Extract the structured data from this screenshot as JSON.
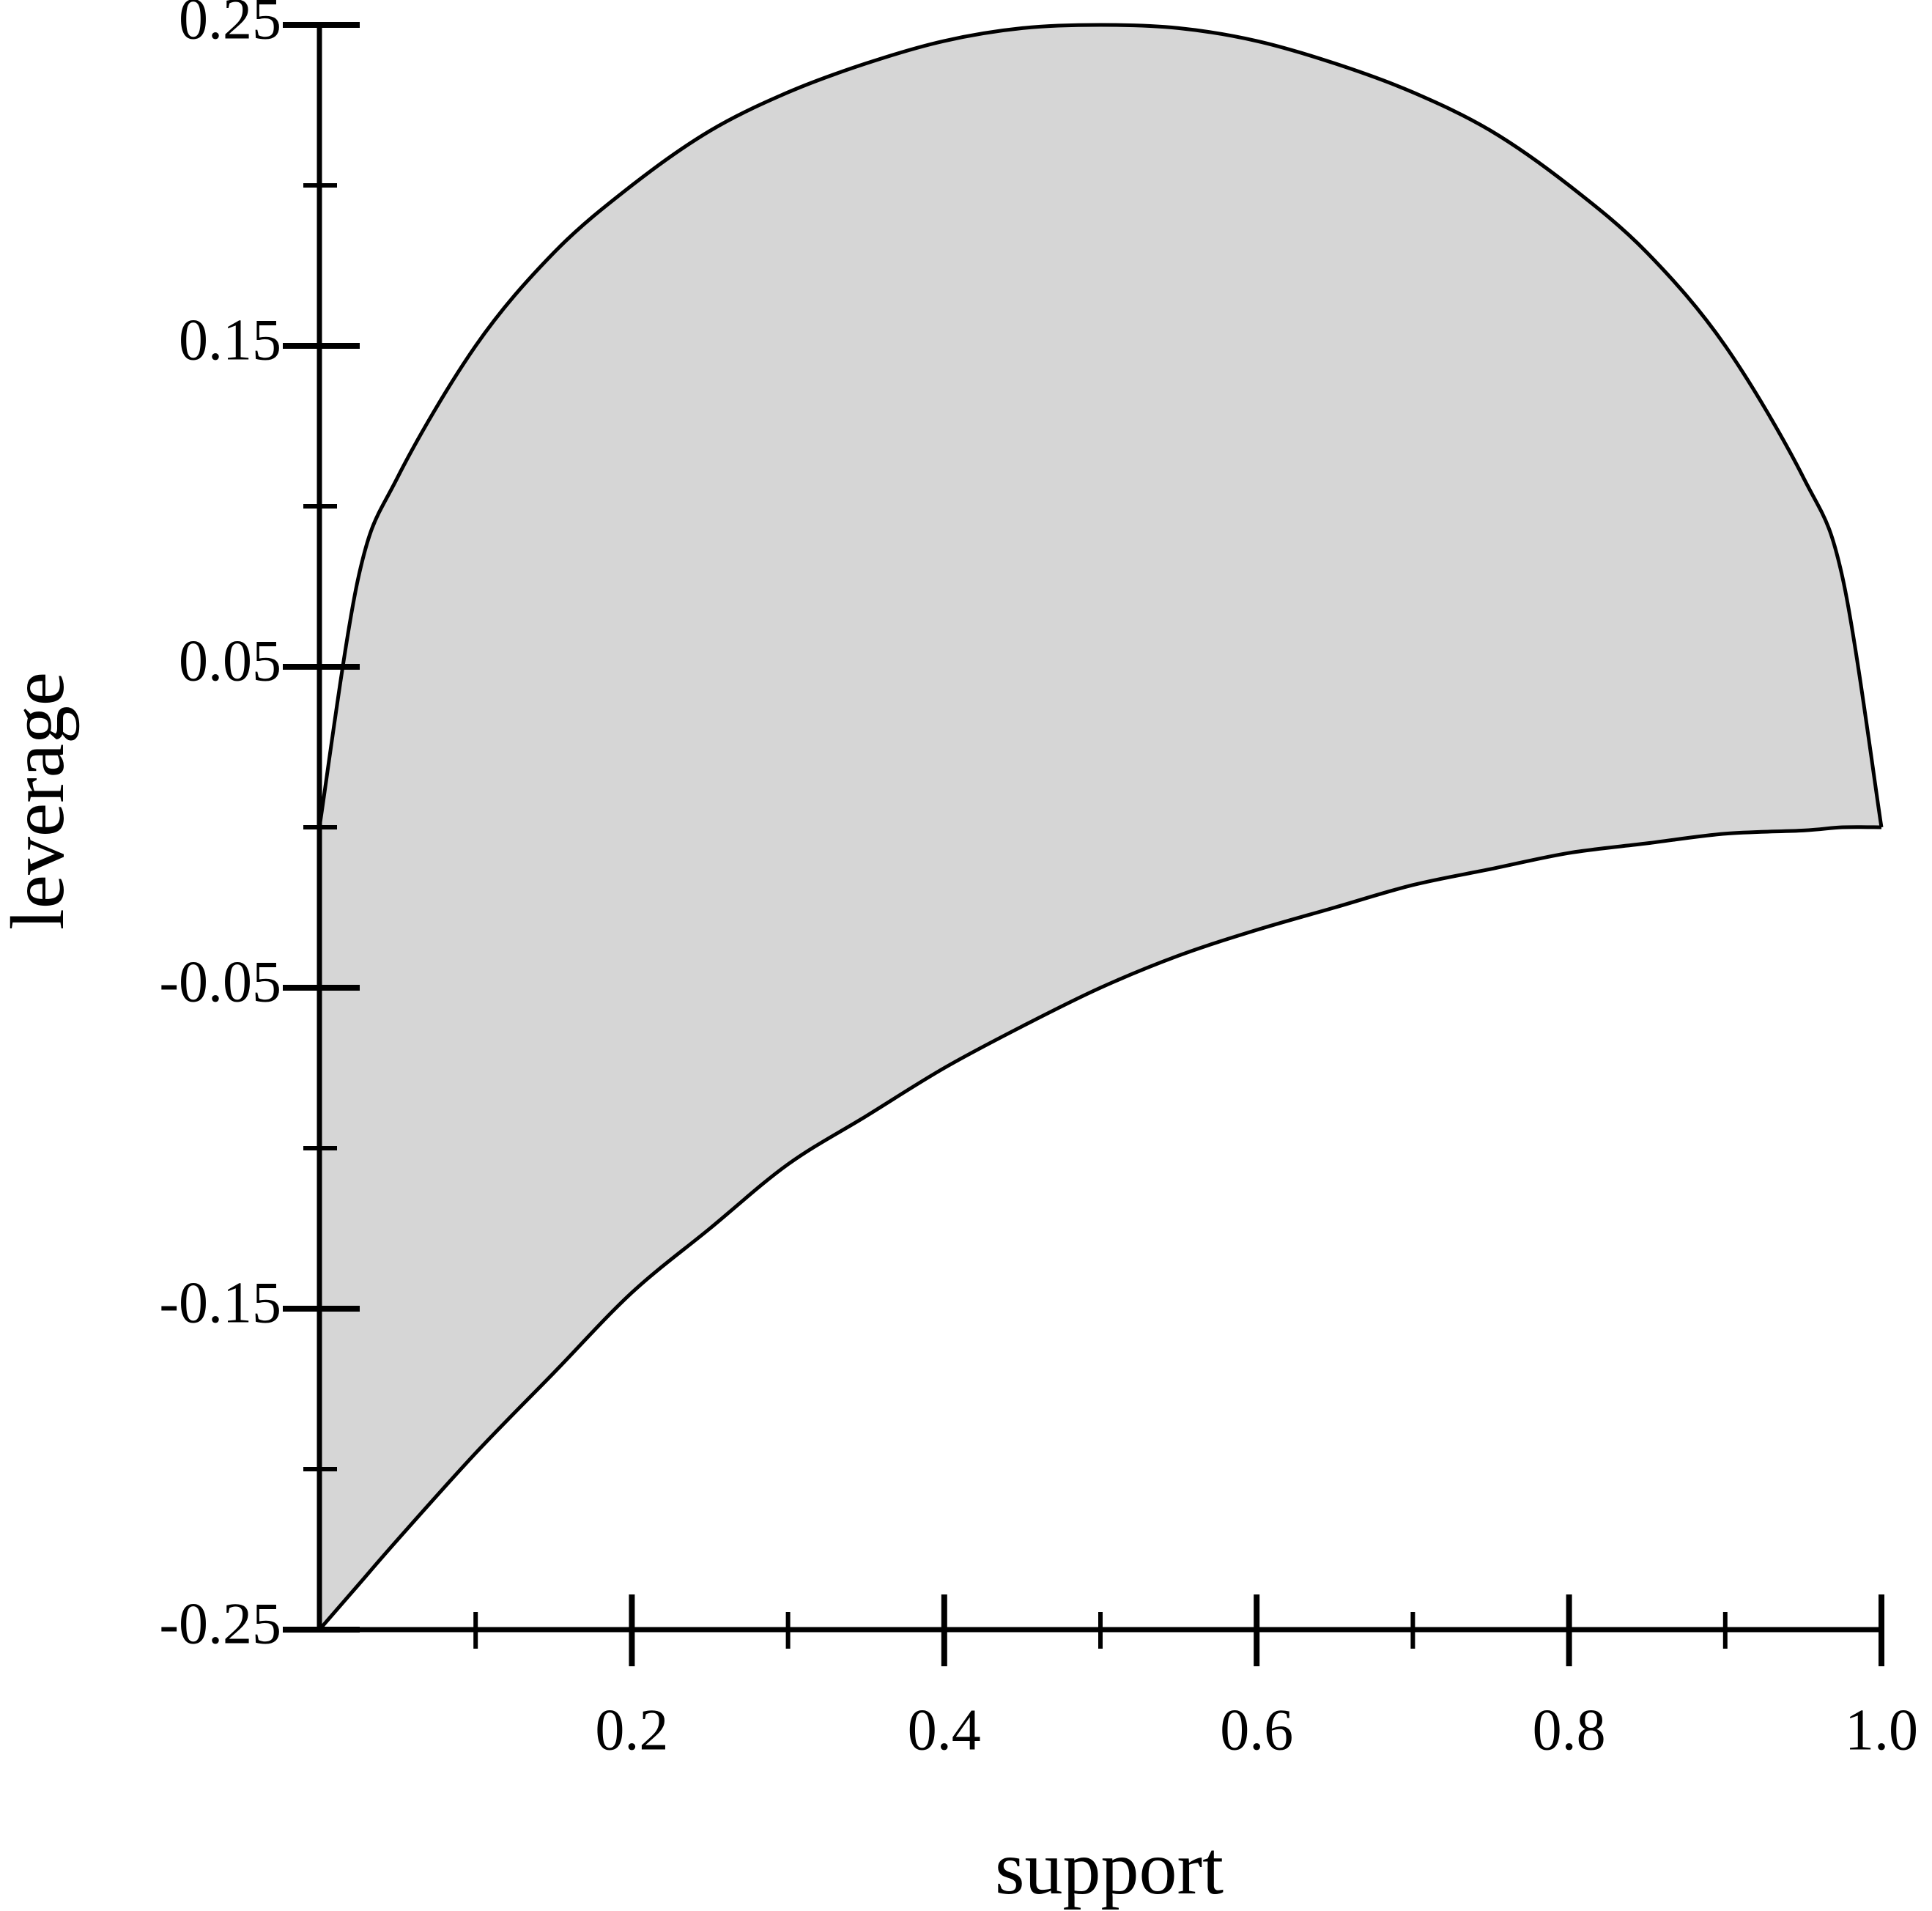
{
  "chart_data": {
    "type": "area",
    "x_label": "support",
    "y_label": "leverage",
    "x": [
      0,
      0.025,
      0.05,
      0.1,
      0.15,
      0.2,
      0.25,
      0.3,
      0.35,
      0.4,
      0.45,
      0.5,
      0.55,
      0.6,
      0.65,
      0.7,
      0.75,
      0.8,
      0.85,
      0.9,
      0.95,
      0.975,
      1
    ],
    "series": [
      {
        "color": "#d6d6d6",
        "values": [
          0,
          0.078,
          0.109,
          0.15,
          0.179,
          0.2,
          0.217,
          0.229,
          0.238,
          0.245,
          0.249,
          0.25,
          0.249,
          0.245,
          0.238,
          0.229,
          0.217,
          0.2,
          0.179,
          0.15,
          0.109,
          0.078,
          0
        ]
      },
      {
        "color": "#d6d6d6",
        "values": [
          -0.25,
          -0.236,
          -0.222,
          -0.195,
          -0.17,
          -0.145,
          -0.125,
          -0.105,
          -0.09,
          -0.075,
          -0.062,
          -0.05,
          -0.04,
          -0.032,
          -0.025,
          -0.018,
          -0.013,
          -0.008,
          -0.005,
          -0.002,
          -0.001,
          0,
          0
        ]
      }
    ],
    "line_color": "#000000",
    "xlim": [
      0,
      1
    ],
    "ylim": [
      -0.25,
      0.25
    ],
    "xticks": [
      0.2,
      0.4,
      0.6,
      0.8,
      {
        "value": 1,
        "label": "1.0"
      }
    ],
    "xminorticks": [
      0.1,
      0.3,
      0.5,
      0.7,
      0.9
    ],
    "yticks": [
      0.25,
      0.15,
      0.05,
      -0.05,
      -0.15,
      -0.25
    ],
    "yminorticks": [
      0.2,
      0.1,
      0,
      -0.1,
      -0.2
    ]
  }
}
